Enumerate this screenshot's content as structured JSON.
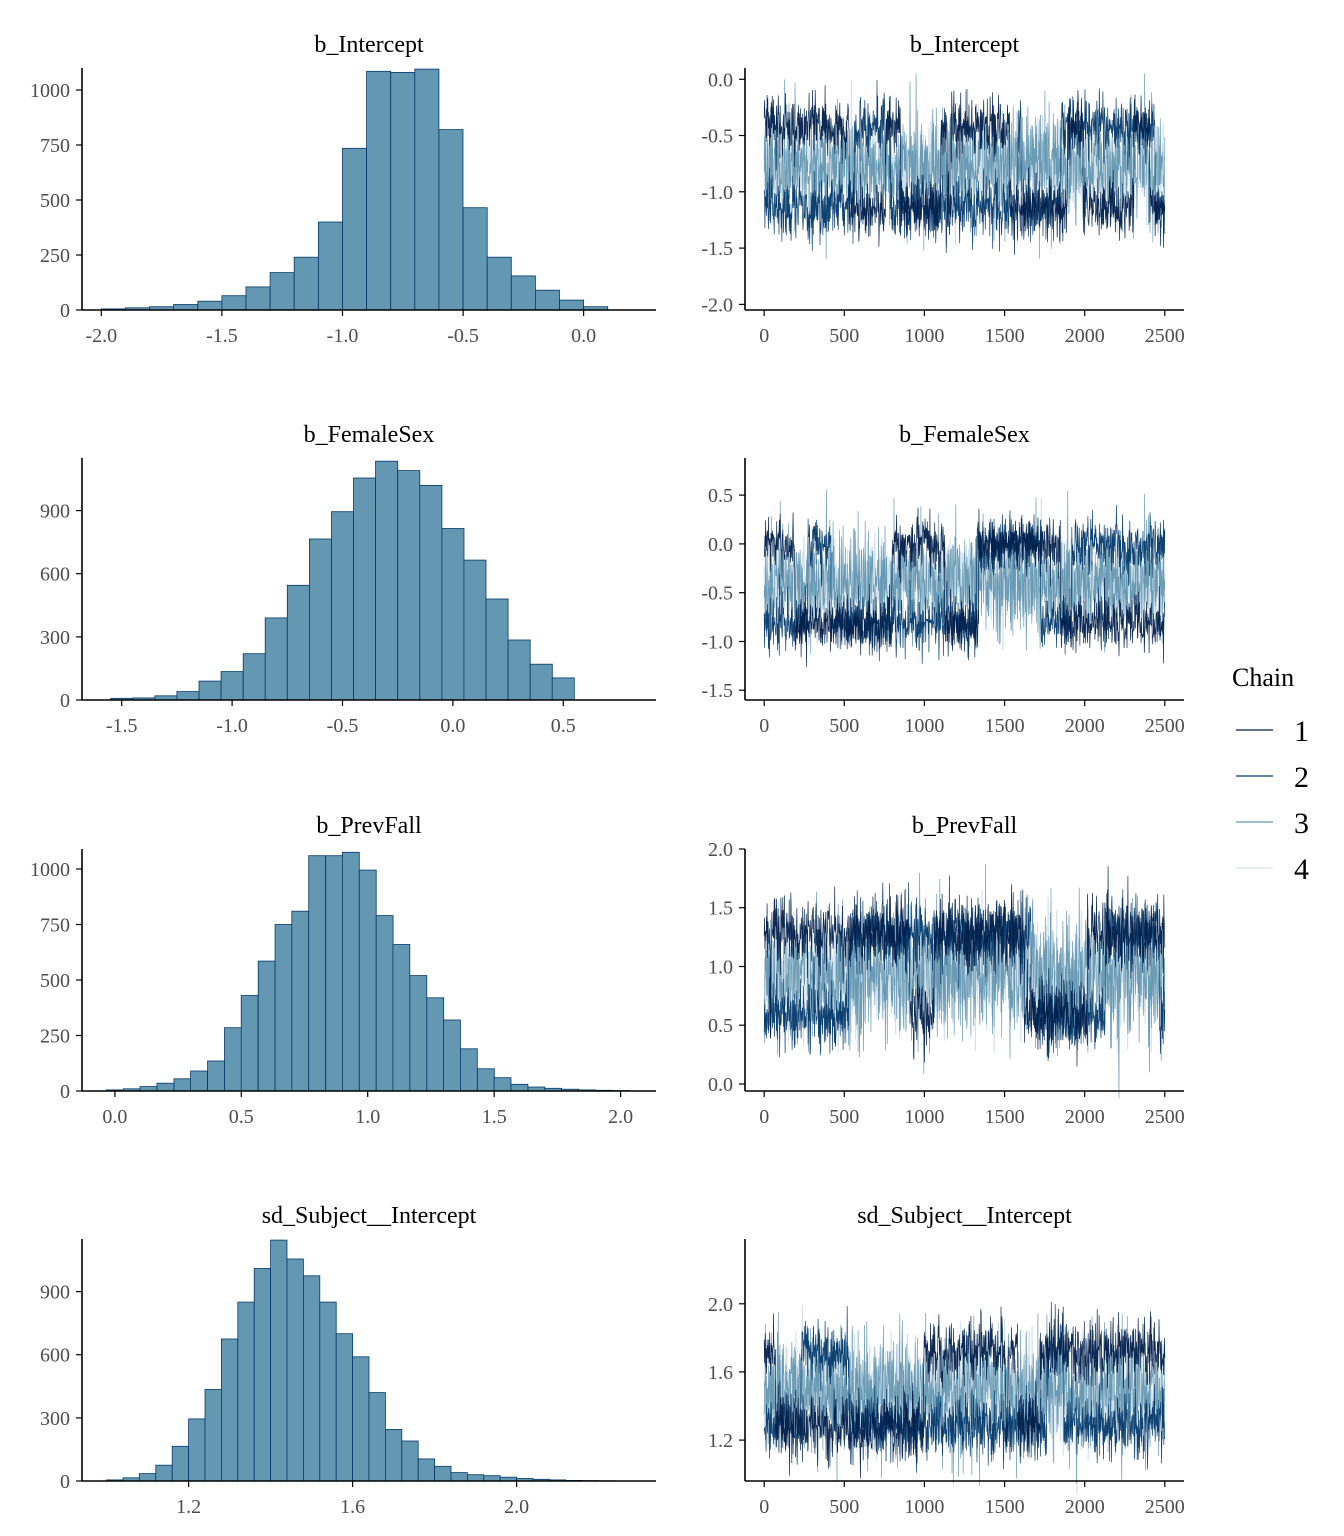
{
  "legend": {
    "title": "Chain",
    "items": [
      {
        "label": "1",
        "color": "#011f4b"
      },
      {
        "label": "2",
        "color": "#03396c"
      },
      {
        "label": "3",
        "color": "#6497b1"
      },
      {
        "label": "4",
        "color": "#d1e1ec"
      }
    ],
    "placement": "right"
  },
  "colors": {
    "histogram_fill": "#6497b1",
    "histogram_outline": "#03396c",
    "axis": "#000000",
    "tick_text": "#4d4d4d"
  },
  "chart_data": [
    {
      "type": "bar",
      "title": "b_Intercept",
      "bins_x": [
        -1.95,
        -1.85,
        -1.75,
        -1.65,
        -1.55,
        -1.45,
        -1.35,
        -1.25,
        -1.15,
        -1.05,
        -0.95,
        -0.85,
        -0.75,
        -0.65,
        -0.55,
        -0.45,
        -0.35,
        -0.25,
        -0.15,
        -0.05,
        0.05
      ],
      "bin_width": 0.1,
      "values": [
        5,
        10,
        15,
        25,
        40,
        65,
        105,
        170,
        240,
        400,
        735,
        1085,
        1080,
        1095,
        820,
        465,
        240,
        155,
        90,
        45,
        15
      ],
      "xlim": [
        -2.08,
        0.3
      ],
      "ylim": [
        0,
        1100
      ],
      "xticks": [
        -2.0,
        -1.5,
        -1.0,
        -0.5,
        0.0
      ],
      "xtick_labels": [
        "-2.0",
        "-1.5",
        "-1.0",
        "-0.5",
        "0.0"
      ],
      "yticks": [
        0,
        250,
        500,
        750,
        1000
      ],
      "ytick_labels": [
        "0",
        "250",
        "500",
        "750",
        "1000"
      ]
    },
    {
      "type": "line",
      "title": "b_Intercept",
      "xlim": [
        -120,
        2620
      ],
      "ylim": [
        -2.05,
        0.1
      ],
      "xticks": [
        0,
        500,
        1000,
        1500,
        2000,
        2500
      ],
      "xtick_labels": [
        "0",
        "500",
        "1000",
        "1500",
        "2000",
        "2500"
      ],
      "yticks": [
        0.0,
        -0.5,
        -1.0,
        -1.5,
        -2.0
      ],
      "ytick_labels": [
        "0.0",
        "-0.5",
        "-1.0",
        "-1.5",
        "-2.0"
      ],
      "iterations": 2500,
      "center": -0.78,
      "spread": 0.22,
      "upper_band": -0.42,
      "lower_band": -1.14
    },
    {
      "type": "bar",
      "title": "b_FemaleSex",
      "bins_x": [
        -1.5,
        -1.4,
        -1.3,
        -1.2,
        -1.1,
        -1.0,
        -0.9,
        -0.8,
        -0.7,
        -0.6,
        -0.5,
        -0.4,
        -0.3,
        -0.2,
        -0.1,
        0.0,
        0.1,
        0.2,
        0.3,
        0.4,
        0.5
      ],
      "bin_width": 0.1,
      "values": [
        8,
        10,
        20,
        40,
        90,
        135,
        220,
        390,
        545,
        765,
        895,
        1055,
        1135,
        1090,
        1020,
        815,
        665,
        480,
        285,
        170,
        105
      ],
      "xlim": [
        -1.68,
        0.92
      ],
      "ylim": [
        0,
        1150
      ],
      "xticks": [
        -1.5,
        -1.0,
        -0.5,
        0.0,
        0.5
      ],
      "xtick_labels": [
        "-1.5",
        "-1.0",
        "-0.5",
        "0.0",
        "0.5"
      ],
      "yticks": [
        0,
        300,
        600,
        900
      ],
      "ytick_labels": [
        "0",
        "300",
        "600",
        "900"
      ]
    },
    {
      "type": "line",
      "title": "b_FemaleSex",
      "xlim": [
        -120,
        2620
      ],
      "ylim": [
        -1.6,
        0.88
      ],
      "xticks": [
        0,
        500,
        1000,
        1500,
        2000,
        2500
      ],
      "xtick_labels": [
        "0",
        "500",
        "1000",
        "1500",
        "2000",
        "2500"
      ],
      "yticks": [
        0.5,
        0.0,
        -0.5,
        -1.0,
        -1.5
      ],
      "ytick_labels": [
        "0.5",
        "0.0",
        "-0.5",
        "-1.0",
        "-1.5"
      ],
      "iterations": 2500,
      "center": -0.4,
      "spread": 0.24,
      "upper_band": 0.0,
      "lower_band": -0.82
    },
    {
      "type": "bar",
      "title": "b_PrevFall",
      "bins_x": [
        0.0,
        0.067,
        0.133,
        0.2,
        0.267,
        0.333,
        0.4,
        0.467,
        0.533,
        0.6,
        0.667,
        0.733,
        0.8,
        0.867,
        0.933,
        1.0,
        1.067,
        1.133,
        1.2,
        1.267,
        1.333,
        1.4,
        1.467,
        1.533,
        1.6,
        1.667,
        1.733,
        1.8,
        1.867,
        1.933,
        2.0
      ],
      "bin_width": 0.0667,
      "values": [
        5,
        10,
        20,
        35,
        55,
        90,
        135,
        285,
        430,
        585,
        750,
        810,
        1060,
        1060,
        1075,
        995,
        790,
        660,
        520,
        420,
        320,
        190,
        100,
        60,
        30,
        18,
        12,
        8,
        5,
        3,
        2
      ],
      "xlim": [
        -0.13,
        2.14
      ],
      "ylim": [
        0,
        1090
      ],
      "xticks": [
        0.0,
        0.5,
        1.0,
        1.5,
        2.0
      ],
      "xtick_labels": [
        "0.0",
        "0.5",
        "1.0",
        "1.5",
        "2.0"
      ],
      "yticks": [
        0,
        250,
        500,
        750,
        1000
      ],
      "ytick_labels": [
        "0",
        "250",
        "500",
        "750",
        "1000"
      ]
    },
    {
      "type": "line",
      "title": "b_PrevFall",
      "xlim": [
        -120,
        2620
      ],
      "ylim": [
        -0.06,
        2.0
      ],
      "xticks": [
        0,
        500,
        1000,
        1500,
        2000,
        2500
      ],
      "xtick_labels": [
        "0",
        "500",
        "1000",
        "1500",
        "2000",
        "2500"
      ],
      "yticks": [
        2.0,
        1.5,
        1.0,
        0.5,
        0.0
      ],
      "ytick_labels": [
        "2.0",
        "1.5",
        "1.0",
        "0.5",
        "0.0"
      ],
      "iterations": 2500,
      "center": 0.93,
      "spread": 0.25,
      "upper_band": 1.28,
      "lower_band": 0.58
    },
    {
      "type": "bar",
      "title": "sd_Subject__Intercept",
      "bins_x": [
        1.02,
        1.06,
        1.1,
        1.14,
        1.18,
        1.22,
        1.26,
        1.3,
        1.34,
        1.38,
        1.42,
        1.46,
        1.5,
        1.54,
        1.58,
        1.62,
        1.66,
        1.7,
        1.74,
        1.78,
        1.82,
        1.86,
        1.9,
        1.94,
        1.98,
        2.02,
        2.06,
        2.1,
        2.14,
        2.18,
        2.22
      ],
      "bin_width": 0.04,
      "values": [
        5,
        15,
        35,
        75,
        165,
        295,
        435,
        675,
        850,
        1010,
        1145,
        1055,
        975,
        850,
        700,
        590,
        420,
        245,
        190,
        105,
        70,
        40,
        30,
        25,
        18,
        12,
        8,
        5,
        3,
        2,
        1
      ],
      "xlim": [
        0.94,
        2.34
      ],
      "ylim": [
        0,
        1150
      ],
      "xticks": [
        1.2,
        1.6,
        2.0
      ],
      "xtick_labels": [
        "1.2",
        "1.6",
        "2.0"
      ],
      "yticks": [
        0,
        300,
        600,
        900
      ],
      "ytick_labels": [
        "0",
        "300",
        "600",
        "900"
      ]
    },
    {
      "type": "line",
      "title": "sd_Subject__Intercept",
      "xlim": [
        -120,
        2620
      ],
      "ylim": [
        0.96,
        2.38
      ],
      "xticks": [
        0,
        500,
        1000,
        1500,
        2000,
        2500
      ],
      "xtick_labels": [
        "0",
        "500",
        "1000",
        "1500",
        "2000",
        "2500"
      ],
      "yticks": [
        2.0,
        1.6,
        1.2
      ],
      "ytick_labels": [
        "2.0",
        "1.6",
        "1.2"
      ],
      "iterations": 2500,
      "center": 1.48,
      "spread": 0.16,
      "upper_band": 1.72,
      "lower_band": 1.28
    }
  ]
}
